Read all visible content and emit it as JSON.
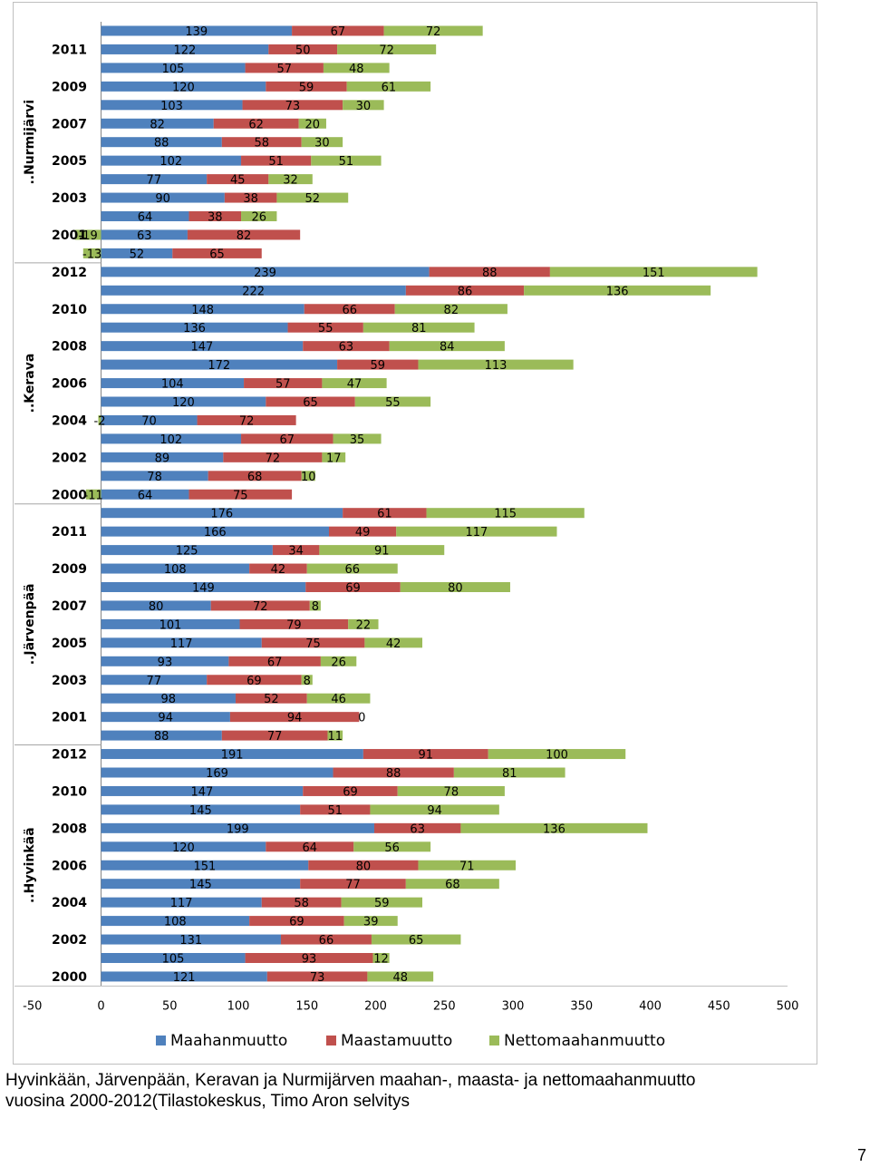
{
  "caption": {
    "line1": "Hyvinkään, Järvenpään, Keravan ja Nurmijärven maahan-, maasta- ja nettomaahanmuutto",
    "line2": "vuosina 2000-2012(Tilastokeskus, Timo Aron selvitys"
  },
  "page_number": "7",
  "chart_data": {
    "type": "bar",
    "orientation": "horizontal",
    "stacked": true,
    "xlim": [
      -50,
      500
    ],
    "x_ticks": [
      "-50",
      "0",
      "50",
      "100",
      "150",
      "200",
      "250",
      "300",
      "350",
      "400",
      "450",
      "500"
    ],
    "grid": false,
    "legend_position": "bottom",
    "colors": {
      "Maahanmuutto": "#4f81bd",
      "Maastamuutto": "#c0504d",
      "Nettomaahanmuutto": "#9bbb59"
    },
    "series_names": [
      "Maahanmuutto",
      "Maastamuutto",
      "Nettomaahanmuutto"
    ],
    "groups": [
      {
        "name": "..Nurmijärvi",
        "rows": [
          {
            "year": "2012",
            "maahan": 139,
            "maasta": 67,
            "netto": 72,
            "year_shown": false
          },
          {
            "year": "2011",
            "maahan": 122,
            "maasta": 50,
            "netto": 72,
            "year_shown": true
          },
          {
            "year": "2010",
            "maahan": 105,
            "maasta": 57,
            "netto": 48,
            "year_shown": false
          },
          {
            "year": "2009",
            "maahan": 120,
            "maasta": 59,
            "netto": 61,
            "year_shown": true
          },
          {
            "year": "2008",
            "maahan": 103,
            "maasta": 73,
            "netto": 30,
            "year_shown": false
          },
          {
            "year": "2007",
            "maahan": 82,
            "maasta": 62,
            "netto": 20,
            "year_shown": true
          },
          {
            "year": "2006",
            "maahan": 88,
            "maasta": 58,
            "netto": 30,
            "year_shown": false
          },
          {
            "year": "2005",
            "maahan": 102,
            "maasta": 51,
            "netto": 51,
            "year_shown": true
          },
          {
            "year": "2004",
            "maahan": 77,
            "maasta": 45,
            "netto": 32,
            "year_shown": false
          },
          {
            "year": "2003",
            "maahan": 90,
            "maasta": 38,
            "netto": 52,
            "year_shown": true
          },
          {
            "year": "2002",
            "maahan": 64,
            "maasta": 38,
            "netto": 26,
            "year_shown": false
          },
          {
            "year": "2001",
            "maahan": 63,
            "maasta": 82,
            "netto": -19,
            "year_shown": true
          },
          {
            "year": "2000",
            "maahan": 52,
            "maasta": 65,
            "netto": -13,
            "year_shown": false
          }
        ]
      },
      {
        "name": "..Kerava",
        "rows": [
          {
            "year": "2012",
            "maahan": 239,
            "maasta": 88,
            "netto": 151,
            "year_shown": true
          },
          {
            "year": "2011",
            "maahan": 222,
            "maasta": 86,
            "netto": 136,
            "year_shown": false
          },
          {
            "year": "2010",
            "maahan": 148,
            "maasta": 66,
            "netto": 82,
            "year_shown": true
          },
          {
            "year": "2009",
            "maahan": 136,
            "maasta": 55,
            "netto": 81,
            "year_shown": false
          },
          {
            "year": "2008",
            "maahan": 147,
            "maasta": 63,
            "netto": 84,
            "year_shown": true
          },
          {
            "year": "2007",
            "maahan": 172,
            "maasta": 59,
            "netto": 113,
            "year_shown": false
          },
          {
            "year": "2006",
            "maahan": 104,
            "maasta": 57,
            "netto": 47,
            "year_shown": true
          },
          {
            "year": "2005",
            "maahan": 120,
            "maasta": 65,
            "netto": 55,
            "year_shown": false
          },
          {
            "year": "2004",
            "maahan": 70,
            "maasta": 72,
            "netto": -2,
            "year_shown": true
          },
          {
            "year": "2003",
            "maahan": 102,
            "maasta": 67,
            "netto": 35,
            "year_shown": false
          },
          {
            "year": "2002",
            "maahan": 89,
            "maasta": 72,
            "netto": 17,
            "year_shown": true
          },
          {
            "year": "2001",
            "maahan": 78,
            "maasta": 68,
            "netto": 10,
            "year_shown": false
          },
          {
            "year": "2000",
            "maahan": 64,
            "maasta": 75,
            "netto": -11,
            "year_shown": true
          }
        ]
      },
      {
        "name": "..Järvenpää",
        "rows": [
          {
            "year": "2012",
            "maahan": 176,
            "maasta": 61,
            "netto": 115,
            "year_shown": false
          },
          {
            "year": "2011",
            "maahan": 166,
            "maasta": 49,
            "netto": 117,
            "year_shown": true
          },
          {
            "year": "2010",
            "maahan": 125,
            "maasta": 34,
            "netto": 91,
            "year_shown": false
          },
          {
            "year": "2009",
            "maahan": 108,
            "maasta": 42,
            "netto": 66,
            "year_shown": true
          },
          {
            "year": "2008",
            "maahan": 149,
            "maasta": 69,
            "netto": 80,
            "year_shown": false
          },
          {
            "year": "2007",
            "maahan": 80,
            "maasta": 72,
            "netto": 8,
            "year_shown": true
          },
          {
            "year": "2006",
            "maahan": 101,
            "maasta": 79,
            "netto": 22,
            "year_shown": false
          },
          {
            "year": "2005",
            "maahan": 117,
            "maasta": 75,
            "netto": 42,
            "year_shown": true
          },
          {
            "year": "2004",
            "maahan": 93,
            "maasta": 67,
            "netto": 26,
            "year_shown": false
          },
          {
            "year": "2003",
            "maahan": 77,
            "maasta": 69,
            "netto": 8,
            "year_shown": true
          },
          {
            "year": "2002",
            "maahan": 98,
            "maasta": 52,
            "netto": 46,
            "year_shown": false
          },
          {
            "year": "2001",
            "maahan": 94,
            "maasta": 94,
            "netto": 0,
            "year_shown": true
          },
          {
            "year": "2000",
            "maahan": 88,
            "maasta": 77,
            "netto": 11,
            "year_shown": false
          }
        ]
      },
      {
        "name": "..Hyvinkää",
        "rows": [
          {
            "year": "2012",
            "maahan": 191,
            "maasta": 91,
            "netto": 100,
            "year_shown": true
          },
          {
            "year": "2011",
            "maahan": 169,
            "maasta": 88,
            "netto": 81,
            "year_shown": false
          },
          {
            "year": "2010",
            "maahan": 147,
            "maasta": 69,
            "netto": 78,
            "year_shown": true
          },
          {
            "year": "2009",
            "maahan": 145,
            "maasta": 51,
            "netto": 94,
            "year_shown": false
          },
          {
            "year": "2008",
            "maahan": 199,
            "maasta": 63,
            "netto": 136,
            "year_shown": true
          },
          {
            "year": "2007",
            "maahan": 120,
            "maasta": 64,
            "netto": 56,
            "year_shown": false
          },
          {
            "year": "2006",
            "maahan": 151,
            "maasta": 80,
            "netto": 71,
            "year_shown": true
          },
          {
            "year": "2005",
            "maahan": 145,
            "maasta": 77,
            "netto": 68,
            "year_shown": false
          },
          {
            "year": "2004",
            "maahan": 117,
            "maasta": 58,
            "netto": 59,
            "year_shown": true
          },
          {
            "year": "2003",
            "maahan": 108,
            "maasta": 69,
            "netto": 39,
            "year_shown": false
          },
          {
            "year": "2002",
            "maahan": 131,
            "maasta": 66,
            "netto": 65,
            "year_shown": true
          },
          {
            "year": "2001",
            "maahan": 105,
            "maasta": 93,
            "netto": 12,
            "year_shown": false
          },
          {
            "year": "2000",
            "maahan": 121,
            "maasta": 73,
            "netto": 48,
            "year_shown": true
          }
        ]
      }
    ]
  }
}
